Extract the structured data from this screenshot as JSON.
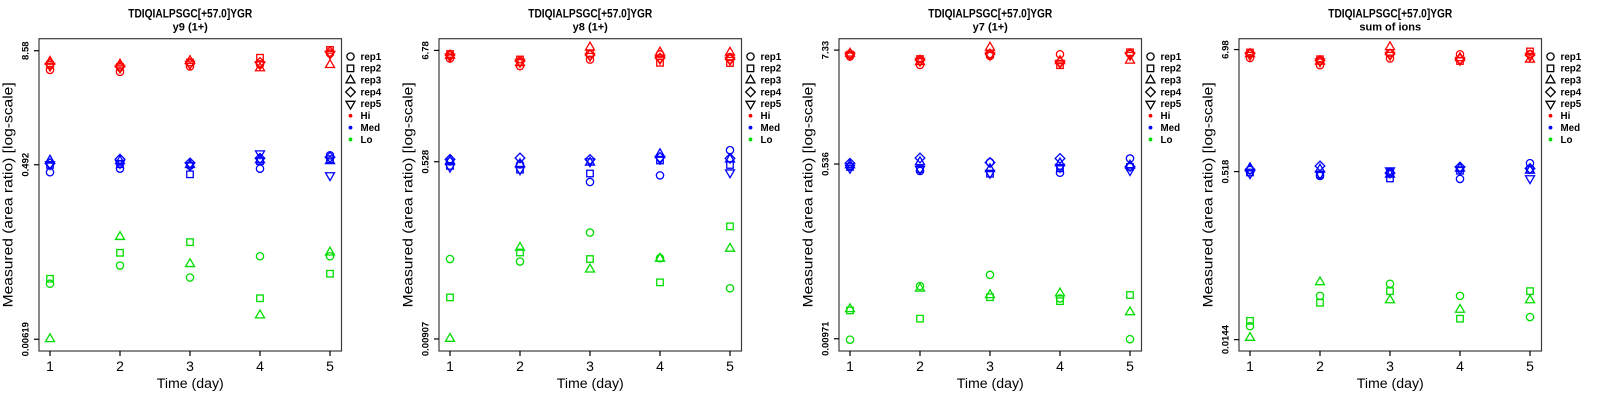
{
  "figure": {
    "background": "#ffffff",
    "panel_count": 4,
    "x_tick_labels": [
      "1",
      "2",
      "3",
      "4",
      "5"
    ],
    "legend": {
      "replicates": [
        {
          "label": "rep1",
          "marker": "circle"
        },
        {
          "label": "rep2",
          "marker": "square"
        },
        {
          "label": "rep3",
          "marker": "triangle"
        },
        {
          "label": "rep4",
          "marker": "diamond"
        },
        {
          "label": "rep5",
          "marker": "vtriangle"
        }
      ],
      "levels": [
        {
          "label": "Hi",
          "color": "#ff0000"
        },
        {
          "label": "Med",
          "color": "#0000ff"
        },
        {
          "label": "Lo",
          "color": "#00dd00"
        }
      ]
    }
  },
  "chart_data": [
    {
      "type": "scatter",
      "title": "TDIQIALPSGC[+57.0]YGR",
      "subtitle": "y9 (1+)",
      "xlabel": "Time (day)",
      "ylabel": "Measured (area ratio) [log-scale]",
      "x": [
        1,
        2,
        3,
        4,
        5
      ],
      "yscale": "log",
      "ylim": [
        0.00461,
        11.6
      ],
      "yticks": [
        8.58,
        0.492,
        0.00619
      ],
      "ytick_labels": [
        "8.58",
        "0.492",
        "0.00619"
      ],
      "series": [
        {
          "name": "Hi rep1",
          "level": "Hi",
          "rep": "rep1",
          "marker": "circle",
          "color": "#ff0000",
          "values": [
            5.3,
            5.05,
            5.79,
            6.09,
            8.02
          ]
        },
        {
          "name": "Hi rep2",
          "level": "Hi",
          "rep": "rep2",
          "marker": "square",
          "color": "#ff0000",
          "values": [
            6.04,
            5.72,
            6.4,
            7.2,
            8.76
          ]
        },
        {
          "name": "Hi rep3",
          "level": "Hi",
          "rep": "rep3",
          "marker": "triangle",
          "color": "#ff0000",
          "values": [
            6.52,
            6.09,
            6.65,
            5.54,
            6.01
          ]
        },
        {
          "name": "Hi rep4",
          "level": "Hi",
          "rep": "rep4",
          "marker": "diamond",
          "color": "#ff0000",
          "values": [
            6.17,
            5.79,
            6.24,
            6.4,
            8.33
          ]
        },
        {
          "name": "Hi rep5",
          "level": "Hi",
          "rep": "rep5",
          "marker": "vtriangle",
          "color": "#ff0000",
          "values": [
            5.86,
            5.58,
            6.17,
            6.09,
            7.92
          ]
        },
        {
          "name": "Med rep1",
          "level": "Med",
          "rep": "rep1",
          "marker": "circle",
          "color": "#0000ff",
          "values": [
            0.408,
            0.446,
            0.48,
            0.446,
            0.623
          ]
        },
        {
          "name": "Med rep2",
          "level": "Med",
          "rep": "rep2",
          "marker": "square",
          "color": "#0000ff",
          "values": [
            0.49,
            0.498,
            0.387,
            0.539,
            0.566
          ]
        },
        {
          "name": "Med rep3",
          "level": "Med",
          "rep": "rep3",
          "marker": "triangle",
          "color": "#0000ff",
          "values": [
            0.548,
            0.539,
            0.49,
            0.552,
            0.54
          ]
        },
        {
          "name": "Med rep4",
          "level": "Med",
          "rep": "rep4",
          "marker": "diamond",
          "color": "#0000ff",
          "values": [
            0.508,
            0.566,
            0.515,
            0.579,
            0.594
          ]
        },
        {
          "name": "Med rep5",
          "level": "Med",
          "rep": "rep5",
          "marker": "vtriangle",
          "color": "#0000ff",
          "values": [
            0.496,
            0.512,
            0.484,
            0.653,
            0.377
          ]
        },
        {
          "name": "Lo rep1",
          "level": "Lo",
          "rep": "rep1",
          "marker": "circle",
          "color": "#00dd00",
          "values": [
            0.0249,
            0.0393,
            0.0291,
            0.0496,
            0.0496
          ]
        },
        {
          "name": "Lo rep2",
          "level": "Lo",
          "rep": "rep2",
          "marker": "square",
          "color": "#00dd00",
          "values": [
            0.0282,
            0.0541,
            0.0706,
            0.0173,
            0.032
          ]
        },
        {
          "name": "Lo rep3",
          "level": "Lo",
          "rep": "rep3",
          "marker": "triangle",
          "color": "#00dd00",
          "values": [
            0.00623,
            0.0807,
            0.0409,
            0.0113,
            0.0546
          ]
        }
      ]
    },
    {
      "type": "scatter",
      "title": "TDIQIALPSGC[+57.0]YGR",
      "subtitle": "y8 (1+)",
      "xlabel": "Time (day)",
      "ylabel": "Measured (area ratio) [log-scale]",
      "x": [
        1,
        2,
        3,
        4,
        5
      ],
      "yscale": "log",
      "ylim": [
        0.00688,
        8.87
      ],
      "yticks": [
        6.78,
        0.528,
        0.00907
      ],
      "ytick_labels": [
        "6.78",
        "0.528",
        "0.00907"
      ],
      "series": [
        {
          "name": "Hi rep1",
          "level": "Hi",
          "rep": "rep1",
          "marker": "circle",
          "color": "#ff0000",
          "values": [
            5.63,
            4.74,
            5.49,
            6.2,
            5.82
          ]
        },
        {
          "name": "Hi rep2",
          "level": "Hi",
          "rep": "rep2",
          "marker": "square",
          "color": "#ff0000",
          "values": [
            6.25,
            5.51,
            6.27,
            5.1,
            5.08
          ]
        },
        {
          "name": "Hi rep3",
          "level": "Hi",
          "rep": "rep3",
          "marker": "triangle",
          "color": "#ff0000",
          "values": [
            6.03,
            5.08,
            7.28,
            6.48,
            6.46
          ]
        },
        {
          "name": "Hi rep4",
          "level": "Hi",
          "rep": "rep4",
          "marker": "diamond",
          "color": "#ff0000",
          "values": [
            6.1,
            5.32,
            6.1,
            5.7,
            5.57
          ]
        },
        {
          "name": "Hi rep5",
          "level": "Hi",
          "rep": "rep5",
          "marker": "vtriangle",
          "color": "#ff0000",
          "values": [
            5.9,
            5.2,
            5.97,
            5.57,
            5.44
          ]
        },
        {
          "name": "Med rep1",
          "level": "Med",
          "rep": "rep1",
          "marker": "circle",
          "color": "#0000ff",
          "values": [
            0.531,
            0.496,
            0.332,
            0.386,
            0.688
          ]
        },
        {
          "name": "Med rep2",
          "level": "Med",
          "rep": "rep2",
          "marker": "square",
          "color": "#0000ff",
          "values": [
            0.48,
            0.44,
            0.403,
            0.543,
            0.49
          ]
        },
        {
          "name": "Med rep3",
          "level": "Med",
          "rep": "rep3",
          "marker": "triangle",
          "color": "#0000ff",
          "values": [
            0.534,
            0.501,
            0.519,
            0.63,
            0.558
          ]
        },
        {
          "name": "Med rep4",
          "level": "Med",
          "rep": "rep4",
          "marker": "diamond",
          "color": "#0000ff",
          "values": [
            0.558,
            0.575,
            0.556,
            0.583,
            0.571
          ]
        },
        {
          "name": "Med rep5",
          "level": "Med",
          "rep": "rep5",
          "marker": "vtriangle",
          "color": "#0000ff",
          "values": [
            0.469,
            0.442,
            0.531,
            0.562,
            0.412
          ]
        },
        {
          "name": "Lo rep1",
          "level": "Lo",
          "rep": "rep1",
          "marker": "circle",
          "color": "#00dd00",
          "values": [
            0.0567,
            0.0535,
            0.104,
            0.0578,
            0.029
          ]
        },
        {
          "name": "Lo rep2",
          "level": "Lo",
          "rep": "rep2",
          "marker": "square",
          "color": "#00dd00",
          "values": [
            0.0235,
            0.0659,
            0.0567,
            0.0332,
            0.12
          ]
        },
        {
          "name": "Lo rep3",
          "level": "Lo",
          "rep": "rep3",
          "marker": "triangle",
          "color": "#00dd00",
          "values": [
            0.00912,
            0.0737,
            0.0447,
            0.0573,
            0.072
          ]
        }
      ]
    },
    {
      "type": "scatter",
      "title": "TDIQIALPSGC[+57.0]YGR",
      "subtitle": "y7 (1+)",
      "xlabel": "Time (day)",
      "ylabel": "Measured (area ratio) [log-scale]",
      "x": [
        1,
        2,
        3,
        4,
        5
      ],
      "yscale": "log",
      "ylim": [
        0.00733,
        9.52
      ],
      "yticks": [
        7.33,
        0.536,
        0.00971
      ],
      "ytick_labels": [
        "7.33",
        "0.536",
        "0.00971"
      ],
      "series": [
        {
          "name": "Hi rep1",
          "level": "Hi",
          "rep": "rep1",
          "marker": "circle",
          "color": "#ff0000",
          "values": [
            6.33,
            5.21,
            6.4,
            6.66,
            6.7
          ]
        },
        {
          "name": "Hi rep2",
          "level": "Hi",
          "rep": "rep2",
          "marker": "square",
          "color": "#ff0000",
          "values": [
            6.62,
            5.97,
            6.66,
            5.18,
            6.97
          ]
        },
        {
          "name": "Hi rep3",
          "level": "Hi",
          "rep": "rep3",
          "marker": "triangle",
          "color": "#ff0000",
          "values": [
            6.78,
            5.58,
            7.78,
            5.71,
            5.77
          ]
        },
        {
          "name": "Hi rep4",
          "level": "Hi",
          "rep": "rep4",
          "marker": "diamond",
          "color": "#ff0000",
          "values": [
            6.7,
            5.84,
            6.7,
            5.58,
            6.78
          ]
        },
        {
          "name": "Hi rep5",
          "level": "Hi",
          "rep": "rep5",
          "marker": "vtriangle",
          "color": "#ff0000",
          "values": [
            6.55,
            5.71,
            6.55,
            5.45,
            6.55
          ]
        },
        {
          "name": "Med rep1",
          "level": "Med",
          "rep": "rep1",
          "marker": "circle",
          "color": "#0000ff",
          "values": [
            0.512,
            0.457,
            0.558,
            0.439,
            0.609
          ]
        },
        {
          "name": "Med rep2",
          "level": "Med",
          "rep": "rep2",
          "marker": "square",
          "color": "#0000ff",
          "values": [
            0.501,
            0.478,
            0.429,
            0.485,
            0.503
          ]
        },
        {
          "name": "Med rep3",
          "level": "Med",
          "rep": "rep3",
          "marker": "triangle",
          "color": "#0000ff",
          "values": [
            0.523,
            0.562,
            0.478,
            0.546,
            0.518
          ]
        },
        {
          "name": "Med rep4",
          "level": "Med",
          "rep": "rep4",
          "marker": "diamond",
          "color": "#0000ff",
          "values": [
            0.546,
            0.616,
            0.555,
            0.609,
            0.507
          ]
        },
        {
          "name": "Med rep5",
          "level": "Med",
          "rep": "rep5",
          "marker": "vtriangle",
          "color": "#0000ff",
          "values": [
            0.489,
            0.478,
            0.436,
            0.501,
            0.464
          ]
        },
        {
          "name": "Lo rep1",
          "level": "Lo",
          "rep": "rep1",
          "marker": "circle",
          "color": "#00dd00",
          "values": [
            0.00951,
            0.0326,
            0.0421,
            0.0245,
            0.00962
          ]
        },
        {
          "name": "Lo rep2",
          "level": "Lo",
          "rep": "rep2",
          "marker": "square",
          "color": "#00dd00",
          "values": [
            0.0186,
            0.0154,
            0.0252,
            0.023,
            0.0265
          ]
        },
        {
          "name": "Lo rep3",
          "level": "Lo",
          "rep": "rep3",
          "marker": "triangle",
          "color": "#00dd00",
          "values": [
            0.0192,
            0.0308,
            0.0265,
            0.0276,
            0.0179
          ]
        }
      ]
    },
    {
      "type": "scatter",
      "title": "TDIQIALPSGC[+57.0]YGR",
      "subtitle": "sum of ions",
      "xlabel": "Time (day)",
      "ylabel": "Measured (area ratio) [log-scale]",
      "x": [
        1,
        2,
        3,
        4,
        5
      ],
      "yscale": "log",
      "ylim": [
        0.0113,
        8.8
      ],
      "yticks": [
        6.98,
        0.518,
        0.0144
      ],
      "ytick_labels": [
        "6.98",
        "0.518",
        "0.0144"
      ],
      "series": [
        {
          "name": "Hi rep1",
          "level": "Hi",
          "rep": "rep1",
          "marker": "circle",
          "color": "#ff0000",
          "values": [
            5.83,
            5.0,
            5.77,
            6.31,
            6.35
          ]
        },
        {
          "name": "Hi rep2",
          "level": "Hi",
          "rep": "rep2",
          "marker": "square",
          "color": "#ff0000",
          "values": [
            6.56,
            5.68,
            6.49,
            5.47,
            6.71
          ]
        },
        {
          "name": "Hi rep3",
          "level": "Hi",
          "rep": "rep3",
          "marker": "triangle",
          "color": "#ff0000",
          "values": [
            6.35,
            5.41,
            7.37,
            5.83,
            5.65
          ]
        },
        {
          "name": "Hi rep4",
          "level": "Hi",
          "rep": "rep4",
          "marker": "diamond",
          "color": "#ff0000",
          "values": [
            6.42,
            5.53,
            6.35,
            5.71,
            6.22
          ]
        },
        {
          "name": "Hi rep5",
          "level": "Hi",
          "rep": "rep5",
          "marker": "vtriangle",
          "color": "#ff0000",
          "values": [
            6.22,
            5.41,
            6.22,
            5.59,
            6.08
          ]
        },
        {
          "name": "Med rep1",
          "level": "Med",
          "rep": "rep1",
          "marker": "circle",
          "color": "#0000ff",
          "values": [
            0.536,
            0.472,
            0.514,
            0.443,
            0.62
          ]
        },
        {
          "name": "Med rep2",
          "level": "Med",
          "rep": "rep2",
          "marker": "square",
          "color": "#0000ff",
          "values": [
            0.508,
            0.487,
            0.447,
            0.527,
            0.537
          ]
        },
        {
          "name": "Med rep3",
          "level": "Med",
          "rep": "rep3",
          "marker": "triangle",
          "color": "#0000ff",
          "values": [
            0.559,
            0.543,
            0.487,
            0.553,
            0.53
          ]
        },
        {
          "name": "Med rep4",
          "level": "Med",
          "rep": "rep4",
          "marker": "diamond",
          "color": "#0000ff",
          "values": [
            0.542,
            0.584,
            0.501,
            0.571,
            0.553
          ]
        },
        {
          "name": "Med rep5",
          "level": "Med",
          "rep": "rep5",
          "marker": "vtriangle",
          "color": "#0000ff",
          "values": [
            0.498,
            0.492,
            0.53,
            0.542,
            0.448
          ]
        },
        {
          "name": "Lo rep1",
          "level": "Lo",
          "rep": "rep1",
          "marker": "circle",
          "color": "#00dd00",
          "values": [
            0.0192,
            0.0366,
            0.0474,
            0.0366,
            0.0233
          ]
        },
        {
          "name": "Lo rep2",
          "level": "Lo",
          "rep": "rep2",
          "marker": "square",
          "color": "#00dd00",
          "values": [
            0.0215,
            0.0316,
            0.0405,
            0.0225,
            0.0405
          ]
        },
        {
          "name": "Lo rep3",
          "level": "Lo",
          "rep": "rep3",
          "marker": "triangle",
          "color": "#00dd00",
          "values": [
            0.015,
            0.0491,
            0.0334,
            0.0273,
            0.0334
          ]
        }
      ]
    }
  ]
}
